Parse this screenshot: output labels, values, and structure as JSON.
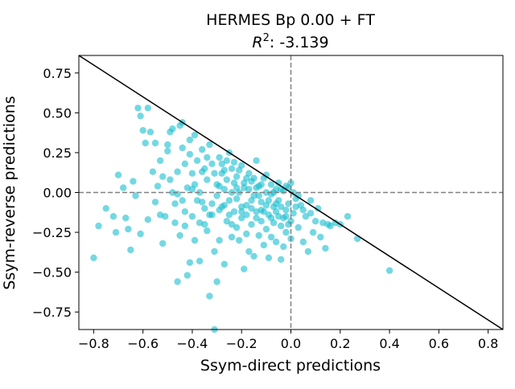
{
  "chart_data": {
    "type": "scatter",
    "title": "HERMES Bp 0.00 + FT",
    "subtitle_prefix": "R",
    "subtitle_sup": "2",
    "subtitle_rest": ": -3.139",
    "xlabel": "Ssym-direct predictions",
    "ylabel": "Ssym-reverse predictions",
    "xlim": [
      -0.86,
      0.86
    ],
    "ylim": [
      -0.86,
      0.86
    ],
    "xticks": [
      -0.8,
      -0.6,
      -0.4,
      -0.2,
      0.0,
      0.2,
      0.4,
      0.6,
      0.8
    ],
    "xtick_labels": [
      "−0.8",
      "−0.6",
      "−0.4",
      "−0.2",
      "0.0",
      "0.2",
      "0.4",
      "0.6",
      "0.8"
    ],
    "yticks": [
      -0.75,
      -0.5,
      -0.25,
      0.0,
      0.25,
      0.5,
      0.75
    ],
    "ytick_labels": [
      "−0.75",
      "−0.50",
      "−0.25",
      "0.00",
      "0.25",
      "0.50",
      "0.75"
    ],
    "grid": false,
    "reference_lines": {
      "diagonal": "y = -x",
      "zero_lines": "dashed x=0 and y=0"
    },
    "colors": {
      "points": "#17becf",
      "diagonal": "#000000",
      "zero_lines": "#808080"
    },
    "points": [
      [
        -0.8,
        -0.41
      ],
      [
        -0.78,
        -0.21
      ],
      [
        -0.75,
        -0.1
      ],
      [
        -0.72,
        -0.15
      ],
      [
        -0.71,
        -0.25
      ],
      [
        -0.7,
        0.11
      ],
      [
        -0.68,
        0.03
      ],
      [
        -0.67,
        -0.16
      ],
      [
        -0.66,
        -0.23
      ],
      [
        -0.65,
        -0.36
      ],
      [
        -0.64,
        0.07
      ],
      [
        -0.63,
        -0.02
      ],
      [
        -0.62,
        0.53
      ],
      [
        -0.61,
        0.48
      ],
      [
        -0.61,
        -0.26
      ],
      [
        -0.6,
        0.39
      ],
      [
        -0.59,
        0.31
      ],
      [
        -0.58,
        0.53
      ],
      [
        -0.58,
        -0.17
      ],
      [
        -0.57,
        0.38
      ],
      [
        -0.56,
        0.13
      ],
      [
        -0.55,
        0.31
      ],
      [
        -0.55,
        -0.06
      ],
      [
        -0.54,
        0.04
      ],
      [
        -0.53,
        0.2
      ],
      [
        -0.52,
        -0.32
      ],
      [
        -0.52,
        0.1
      ],
      [
        -0.51,
        -0.15
      ],
      [
        -0.5,
        0.26
      ],
      [
        -0.5,
        0.3
      ],
      [
        -0.49,
        0.38
      ],
      [
        -0.48,
        0.4
      ],
      [
        -0.48,
        0.0
      ],
      [
        -0.47,
        -0.19
      ],
      [
        -0.46,
        0.13
      ],
      [
        -0.46,
        -0.56
      ],
      [
        -0.45,
        0.42
      ],
      [
        -0.45,
        -0.27
      ],
      [
        -0.44,
        0.44
      ],
      [
        -0.44,
        -0.05
      ],
      [
        -0.43,
        -0.12
      ],
      [
        -0.43,
        0.18
      ],
      [
        -0.42,
        0.03
      ],
      [
        -0.42,
        -0.52
      ],
      [
        -0.41,
        0.33
      ],
      [
        -0.41,
        -0.44
      ],
      [
        -0.4,
        0.12
      ],
      [
        -0.4,
        -0.15
      ],
      [
        -0.39,
        0.36
      ],
      [
        -0.39,
        -0.3
      ],
      [
        -0.38,
        0.2
      ],
      [
        -0.38,
        -0.05
      ],
      [
        -0.37,
        0.0
      ],
      [
        -0.37,
        -0.43
      ],
      [
        -0.36,
        0.27
      ],
      [
        -0.36,
        0.13
      ],
      [
        -0.35,
        -0.2
      ],
      [
        -0.35,
        -0.1
      ],
      [
        -0.34,
        -0.24
      ],
      [
        -0.34,
        0.08
      ],
      [
        -0.33,
        -0.65
      ],
      [
        -0.33,
        0.3
      ],
      [
        -0.32,
        0.18
      ],
      [
        -0.32,
        -0.14
      ],
      [
        -0.31,
        -0.86
      ],
      [
        -0.31,
        -0.37
      ],
      [
        -0.3,
        0.05
      ],
      [
        -0.3,
        -0.56
      ],
      [
        -0.29,
        0.22
      ],
      [
        -0.29,
        -0.3
      ],
      [
        -0.28,
        -0.09
      ],
      [
        -0.28,
        0.12
      ],
      [
        -0.27,
        0.02
      ],
      [
        -0.27,
        -0.45
      ],
      [
        -0.26,
        0.2
      ],
      [
        -0.26,
        -0.18
      ],
      [
        -0.25,
        0.25
      ],
      [
        -0.25,
        -0.05
      ],
      [
        -0.24,
        0.15
      ],
      [
        -0.24,
        -0.28
      ],
      [
        -0.23,
        -0.12
      ],
      [
        -0.23,
        0.06
      ],
      [
        -0.22,
        -0.22
      ],
      [
        -0.22,
        0.1
      ],
      [
        -0.21,
        0.0
      ],
      [
        -0.21,
        -0.3
      ],
      [
        -0.2,
        0.17
      ],
      [
        -0.2,
        -0.16
      ],
      [
        -0.19,
        -0.48
      ],
      [
        -0.19,
        0.03
      ],
      [
        -0.18,
        -0.08
      ],
      [
        -0.18,
        -0.26
      ],
      [
        -0.17,
        -0.37
      ],
      [
        -0.17,
        0.12
      ],
      [
        -0.16,
        -0.2
      ],
      [
        -0.16,
        0.07
      ],
      [
        -0.15,
        -0.02
      ],
      [
        -0.15,
        -0.4
      ],
      [
        -0.14,
        -0.12
      ],
      [
        -0.14,
        0.2
      ],
      [
        -0.13,
        -0.27
      ],
      [
        -0.13,
        0.04
      ],
      [
        -0.12,
        -0.18
      ],
      [
        -0.12,
        -0.06
      ],
      [
        -0.11,
        -0.33
      ],
      [
        -0.11,
        0.09
      ],
      [
        -0.1,
        -0.23
      ],
      [
        -0.1,
        0.0
      ],
      [
        -0.09,
        -0.41
      ],
      [
        -0.09,
        -0.14
      ],
      [
        -0.08,
        0.05
      ],
      [
        -0.08,
        -0.28
      ],
      [
        -0.07,
        -0.09
      ],
      [
        -0.07,
        -0.19
      ],
      [
        -0.06,
        0.02
      ],
      [
        -0.06,
        -0.31
      ],
      [
        -0.05,
        -0.05
      ],
      [
        -0.05,
        -0.15
      ],
      [
        -0.04,
        -0.42
      ],
      [
        -0.04,
        -0.21
      ],
      [
        -0.03,
        -0.34
      ],
      [
        -0.03,
        0.01
      ],
      [
        -0.02,
        -0.11
      ],
      [
        -0.02,
        -0.25
      ],
      [
        -0.01,
        0.03
      ],
      [
        -0.01,
        -0.07
      ],
      [
        0.0,
        -0.18
      ],
      [
        0.0,
        -0.29
      ],
      [
        0.01,
        0.0
      ],
      [
        0.01,
        -0.13
      ],
      [
        0.02,
        -0.04
      ],
      [
        0.03,
        -0.22
      ],
      [
        0.04,
        -0.08
      ],
      [
        0.05,
        -0.31
      ],
      [
        0.06,
        -0.15
      ],
      [
        0.07,
        -0.37
      ],
      [
        0.08,
        -0.05
      ],
      [
        0.09,
        -0.25
      ],
      [
        0.1,
        -0.18
      ],
      [
        0.11,
        -0.1
      ],
      [
        0.12,
        -0.28
      ],
      [
        0.13,
        -0.19
      ],
      [
        0.14,
        -0.35
      ],
      [
        0.15,
        -0.2
      ],
      [
        0.16,
        -0.21
      ],
      [
        0.18,
        -0.19
      ],
      [
        0.2,
        -0.2
      ],
      [
        0.23,
        -0.15
      ],
      [
        0.27,
        -0.29
      ],
      [
        0.4,
        -0.49
      ],
      [
        -0.46,
        -0.01
      ],
      [
        -0.44,
        0.28
      ],
      [
        -0.41,
        0.24
      ],
      [
        -0.39,
        0.05
      ],
      [
        -0.36,
        -0.06
      ],
      [
        -0.34,
        0.22
      ],
      [
        -0.33,
        -0.14
      ],
      [
        -0.31,
        0.12
      ],
      [
        -0.3,
        -0.02
      ],
      [
        -0.29,
        0.04
      ],
      [
        -0.28,
        0.18
      ],
      [
        -0.27,
        -0.08
      ],
      [
        -0.26,
        0.08
      ],
      [
        -0.25,
        -0.14
      ],
      [
        -0.24,
        0.0
      ],
      [
        -0.23,
        0.19
      ],
      [
        -0.22,
        -0.04
      ],
      [
        -0.21,
        0.14
      ],
      [
        -0.2,
        -0.09
      ],
      [
        -0.19,
        0.06
      ],
      [
        -0.18,
        -0.14
      ],
      [
        -0.17,
        0.02
      ],
      [
        -0.16,
        -0.1
      ],
      [
        -0.15,
        0.09
      ],
      [
        -0.14,
        -0.16
      ],
      [
        -0.13,
        -0.02
      ],
      [
        -0.12,
        0.05
      ],
      [
        -0.11,
        -0.12
      ],
      [
        -0.1,
        0.11
      ],
      [
        -0.09,
        -0.05
      ],
      [
        -0.08,
        -0.16
      ],
      [
        -0.07,
        0.0
      ],
      [
        -0.06,
        -0.12
      ],
      [
        -0.05,
        0.06
      ],
      [
        -0.04,
        -0.09
      ],
      [
        -0.03,
        -0.16
      ],
      [
        -0.02,
        0.04
      ],
      [
        -0.01,
        -0.2
      ],
      [
        0.0,
        0.06
      ],
      [
        0.02,
        -0.09
      ],
      [
        -0.53,
        -0.14
      ],
      [
        -0.49,
        0.08
      ],
      [
        -0.47,
        -0.07
      ],
      [
        -0.43,
        -0.21
      ],
      [
        -0.4,
        0.02
      ],
      [
        -0.37,
        -0.19
      ],
      [
        -0.35,
        0.15
      ],
      [
        -0.32,
        -0.07
      ],
      [
        -0.29,
        -0.11
      ],
      [
        -0.27,
        0.14
      ],
      [
        -0.24,
        -0.2
      ],
      [
        -0.22,
        0.03
      ],
      [
        -0.2,
        -0.12
      ],
      [
        -0.18,
        0.09
      ],
      [
        -0.16,
        -0.05
      ],
      [
        -0.14,
        0.03
      ],
      [
        -0.12,
        -0.11
      ],
      [
        -0.1,
        -0.08
      ],
      [
        -0.08,
        -0.01
      ],
      [
        -0.06,
        -0.07
      ],
      [
        -0.04,
        0.02
      ],
      [
        -0.02,
        -0.15
      ],
      [
        0.03,
        -0.02
      ],
      [
        0.05,
        -0.11
      ],
      [
        0.08,
        -0.13
      ]
    ]
  }
}
